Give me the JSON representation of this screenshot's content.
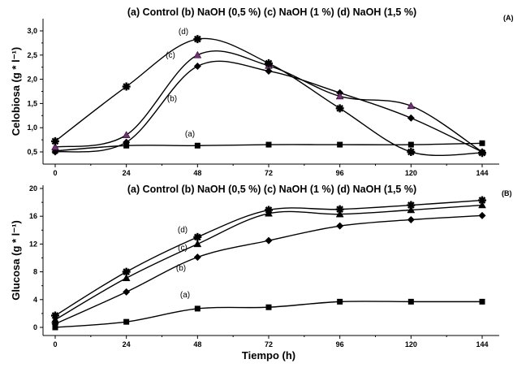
{
  "chart_data": [
    {
      "type": "line",
      "panel_label": "(A)",
      "legend": "(a) Control   (b) NaOH (0,5 %)   (c) NaOH (1 %)   (d) NaOH (1,5 %)",
      "ylabel": "Celobiosa (g * l⁻¹)",
      "xlabel": "",
      "ylim": [
        0.25,
        3.25
      ],
      "yticks": [
        "0,5",
        "1,0",
        "1,5",
        "2,0",
        "2,5",
        "3,0"
      ],
      "ytick_values": [
        0.5,
        1.0,
        1.5,
        2.0,
        2.5,
        3.0
      ],
      "x": [
        0,
        24,
        48,
        72,
        96,
        120,
        144
      ],
      "xticks": [
        "0",
        "24",
        "48",
        "72",
        "96",
        "120",
        "144"
      ],
      "series": [
        {
          "name": "(a) Control",
          "tag": "(a)",
          "values": [
            0.52,
            0.63,
            0.63,
            0.65,
            0.65,
            0.65,
            0.68
          ],
          "marker": "square",
          "color": "#000000"
        },
        {
          "name": "(b) NaOH (0,5 %)",
          "tag": "(b)",
          "values": [
            0.5,
            0.7,
            2.27,
            2.17,
            1.72,
            1.2,
            0.5
          ],
          "marker": "diamond",
          "color": "#000000"
        },
        {
          "name": "(c) NaOH (1 %)",
          "tag": "(c)",
          "values": [
            0.6,
            0.85,
            2.5,
            2.28,
            1.65,
            1.45,
            0.5
          ],
          "marker": "triangle",
          "color": "#7a2a7a"
        },
        {
          "name": "(d) NaOH (1,5 %)",
          "tag": "(d)",
          "values": [
            0.72,
            1.85,
            2.83,
            2.33,
            1.4,
            0.5,
            0.48
          ],
          "marker": "star",
          "color": "#000000"
        }
      ]
    },
    {
      "type": "line",
      "panel_label": "(B)",
      "legend": "(a) Control   (b) NaOH (0,5 %)   (c) NaOH (1 %)   (d) NaOH (1,5 %)",
      "ylabel": "Glucosa (g * l⁻¹)",
      "xlabel": "Tiempo (h)",
      "ylim": [
        -1,
        20
      ],
      "yticks": [
        "0",
        "4",
        "8",
        "12",
        "16",
        "20"
      ],
      "ytick_values": [
        0,
        4,
        8,
        12,
        16,
        20
      ],
      "x": [
        0,
        24,
        48,
        72,
        96,
        120,
        144
      ],
      "xticks": [
        "0",
        "24",
        "48",
        "72",
        "96",
        "120",
        "144"
      ],
      "series": [
        {
          "name": "(a) Control",
          "tag": "(a)",
          "values": [
            0,
            0.8,
            2.7,
            2.9,
            3.7,
            3.7,
            3.7
          ],
          "marker": "square",
          "color": "#000000"
        },
        {
          "name": "(b) NaOH (0,5 %)",
          "tag": "(b)",
          "values": [
            0.5,
            5.1,
            10.1,
            12.5,
            14.6,
            15.5,
            16.1
          ],
          "marker": "diamond",
          "color": "#000000"
        },
        {
          "name": "(c) NaOH (1 %)",
          "tag": "(c)",
          "values": [
            1.1,
            7.1,
            12.0,
            16.4,
            16.3,
            16.9,
            17.6
          ],
          "marker": "triangle",
          "color": "#000000"
        },
        {
          "name": "(d) NaOH (1,5 %)",
          "tag": "(d)",
          "values": [
            1.7,
            8.0,
            13.0,
            16.9,
            17.0,
            17.6,
            18.3
          ],
          "marker": "star",
          "color": "#000000"
        }
      ]
    }
  ]
}
